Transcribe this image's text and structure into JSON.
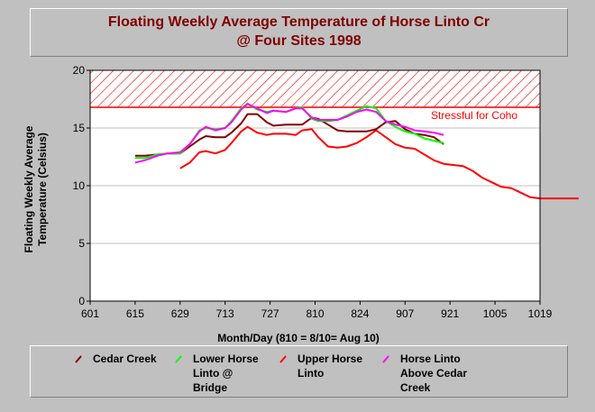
{
  "title": {
    "line1": "Floating Weekly Average Temperature of Horse Linto Cr",
    "line2": "@ Four Sites 1998"
  },
  "chart_data": {
    "type": "line",
    "title": "Floating Weekly Average Temperature of Horse Linto Cr @ Four Sites 1998",
    "xlabel": "Month/Day (810 = 8/10= Aug 10)",
    "ylabel": "Floating Weekly Average Temperature (Celsius)",
    "ylabel_lines": [
      "Floating Weekly Average",
      "Temperature (Celsius)"
    ],
    "ylim": [
      0,
      20
    ],
    "y_ticks": [
      0,
      5,
      10,
      15,
      20
    ],
    "x_ticks": [
      "601",
      "615",
      "629",
      "713",
      "727",
      "810",
      "824",
      "907",
      "921",
      "1005",
      "1019"
    ],
    "grid": true,
    "threshold": {
      "label": "Stressful for Coho",
      "from": 16.8,
      "to": 20,
      "color": "#ff0000"
    },
    "series": [
      {
        "name": "Cedar Creek",
        "color": "#800000",
        "x": [
          615,
          618,
          622,
          625,
          629,
          632,
          635,
          637,
          640,
          643,
          645,
          648,
          650,
          653,
          656,
          658,
          662,
          665,
          667,
          670,
          672,
          675,
          678,
          681,
          684,
          687,
          690,
          693,
          696,
          699,
          702,
          705,
          708,
          711
        ],
        "values": [
          12.6,
          12.6,
          12.7,
          12.8,
          12.8,
          13.4,
          14.0,
          14.3,
          14.2,
          14.2,
          14.6,
          15.4,
          16.2,
          16.2,
          15.5,
          15.2,
          15.3,
          15.3,
          15.3,
          15.9,
          15.8,
          15.3,
          14.8,
          14.7,
          14.7,
          14.7,
          14.9,
          15.5,
          15.6,
          14.9,
          14.5,
          14.4,
          14.2,
          13.6
        ]
      },
      {
        "name": "Lower Horse Linto @ Bridge",
        "color": "#00ff00",
        "x": [
          615,
          618,
          622,
          625,
          629,
          632,
          635,
          637,
          640,
          643,
          645,
          648,
          650,
          653,
          656,
          658,
          662,
          665,
          667,
          670,
          672,
          675,
          678,
          681,
          684,
          687,
          690,
          693,
          696,
          699,
          702,
          705,
          708,
          711
        ],
        "values": [
          12.4,
          12.4,
          12.7,
          12.8,
          12.8,
          13.6,
          14.8,
          15.0,
          14.9,
          15.0,
          15.6,
          16.7,
          17.1,
          16.6,
          16.4,
          16.5,
          16.4,
          16.7,
          16.8,
          15.8,
          15.6,
          15.6,
          15.7,
          16.1,
          16.5,
          16.9,
          16.7,
          15.6,
          15.1,
          14.7,
          14.5,
          14.1,
          13.9,
          13.7
        ]
      },
      {
        "name": "Upper Horse Linto",
        "color": "#ff0000",
        "x": [
          629,
          632,
          635,
          637,
          640,
          643,
          645,
          648,
          650,
          653,
          656,
          658,
          662,
          665,
          667,
          670,
          672,
          675,
          678,
          681,
          684,
          687,
          690,
          693,
          696,
          699,
          702,
          705,
          708,
          711,
          714,
          717,
          720,
          723,
          726,
          729,
          732,
          735,
          738,
          741,
          744,
          747,
          750,
          753
        ],
        "values": [
          11.5,
          12.0,
          12.9,
          13.0,
          12.8,
          13.1,
          13.7,
          14.7,
          15.1,
          14.6,
          14.4,
          14.5,
          14.5,
          14.4,
          14.8,
          14.9,
          14.2,
          13.4,
          13.3,
          13.4,
          13.7,
          14.2,
          14.8,
          14.2,
          13.6,
          13.3,
          13.2,
          12.7,
          12.2,
          11.9,
          11.8,
          11.7,
          11.3,
          10.7,
          10.3,
          9.9,
          9.8,
          9.4,
          9.0,
          8.9,
          8.9,
          8.9,
          8.9,
          8.9
        ]
      },
      {
        "name": "Horse Linto Above Cedar Creek",
        "color": "#ff00ff",
        "x": [
          615,
          618,
          622,
          625,
          629,
          632,
          635,
          637,
          640,
          643,
          645,
          648,
          650,
          653,
          656,
          658,
          662,
          665,
          667,
          670,
          672,
          675,
          678,
          681,
          684,
          687,
          690,
          693,
          696,
          699,
          702,
          705,
          708,
          711
        ],
        "values": [
          12.0,
          12.2,
          12.6,
          12.8,
          12.9,
          13.6,
          14.7,
          15.1,
          14.8,
          15.0,
          15.5,
          16.6,
          17.1,
          16.7,
          16.3,
          16.5,
          16.4,
          16.7,
          16.7,
          15.9,
          15.7,
          15.7,
          15.7,
          16.0,
          16.4,
          16.6,
          16.4,
          15.6,
          15.3,
          15.1,
          14.8,
          14.7,
          14.6,
          14.4
        ]
      }
    ]
  },
  "legend": {
    "items": [
      {
        "label": "Cedar Creek",
        "color": "#800000"
      },
      {
        "label": "Lower Horse\nLinto @\nBridge",
        "color": "#00ff00"
      },
      {
        "label": "Upper Horse\nLinto",
        "color": "#ff0000"
      },
      {
        "label": "Horse Linto\nAbove Cedar\nCreek",
        "color": "#ff00ff"
      }
    ]
  }
}
